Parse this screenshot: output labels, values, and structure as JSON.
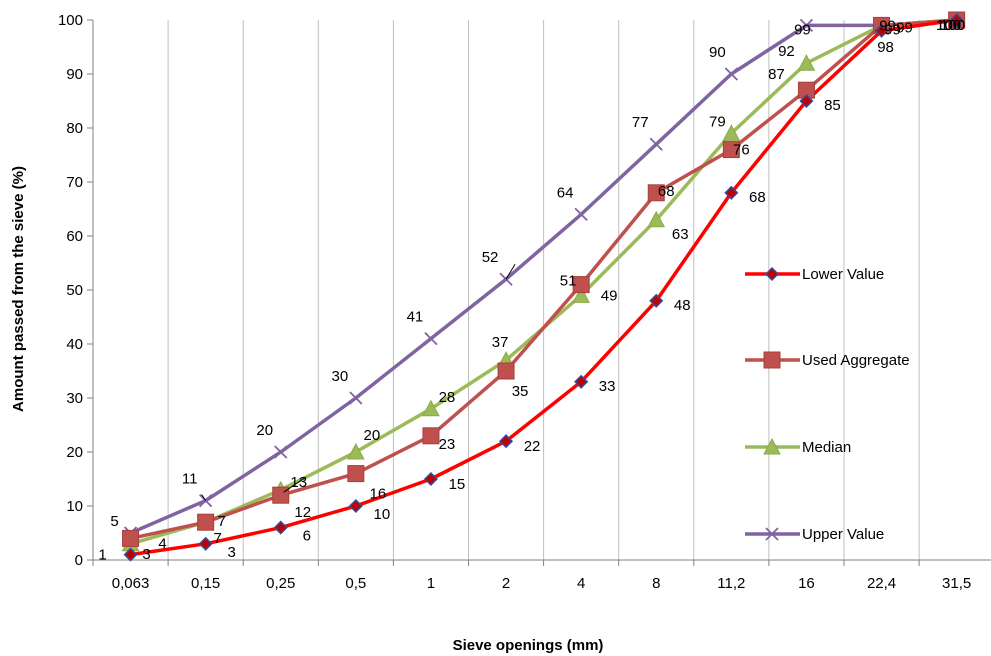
{
  "chart_data": {
    "type": "line",
    "title": "",
    "xlabel": "Sieve openings (mm)",
    "ylabel": "Amount passed from the sieve (%)",
    "categories": [
      "0,063",
      "0,15",
      "0,25",
      "0,5",
      "1",
      "2",
      "4",
      "8",
      "11,2",
      "16",
      "22,4",
      "31,5"
    ],
    "ylim": [
      0,
      100
    ],
    "yticks": [
      "0",
      "10",
      "20",
      "30",
      "40",
      "50",
      "60",
      "70",
      "80",
      "90",
      "100"
    ],
    "grid": "vertical",
    "legend": "right",
    "series": [
      {
        "name": "Lower Value",
        "color": "#ff0000",
        "marker": "diamond",
        "marker_color": "#2e4fa0",
        "values": [
          1,
          3,
          6,
          10,
          15,
          22,
          33,
          48,
          68,
          85,
          98,
          100
        ],
        "labels": [
          "1",
          "3",
          "6",
          "10",
          "15",
          "22",
          "33",
          "48",
          "68",
          "85",
          "98",
          "100"
        ]
      },
      {
        "name": "Used Aggregate",
        "color": "#c0504d",
        "marker": "square",
        "values": [
          4,
          7,
          12,
          16,
          23,
          35,
          51,
          68,
          76,
          87,
          99,
          100
        ],
        "labels": [
          "4",
          "7",
          "12",
          "16",
          "23",
          "35",
          "51",
          "68",
          "76",
          "87",
          "99",
          "100"
        ]
      },
      {
        "name": "Median",
        "color": "#9bbb59",
        "marker": "triangle",
        "values": [
          3,
          7,
          13,
          20,
          28,
          37,
          49,
          63,
          79,
          92,
          99,
          100
        ],
        "labels": [
          "3",
          "7",
          "13",
          "20",
          "28",
          "37",
          "49",
          "63",
          "79",
          "92",
          "99",
          "100"
        ]
      },
      {
        "name": "Upper Value",
        "color": "#8064a2",
        "marker": "x",
        "values": [
          5,
          11,
          20,
          30,
          41,
          52,
          64,
          77,
          90,
          99,
          99,
          100
        ],
        "labels": [
          "5",
          "11",
          "20",
          "30",
          "41",
          "52",
          "64",
          "77",
          "90",
          "99",
          "99",
          "100"
        ]
      }
    ]
  }
}
